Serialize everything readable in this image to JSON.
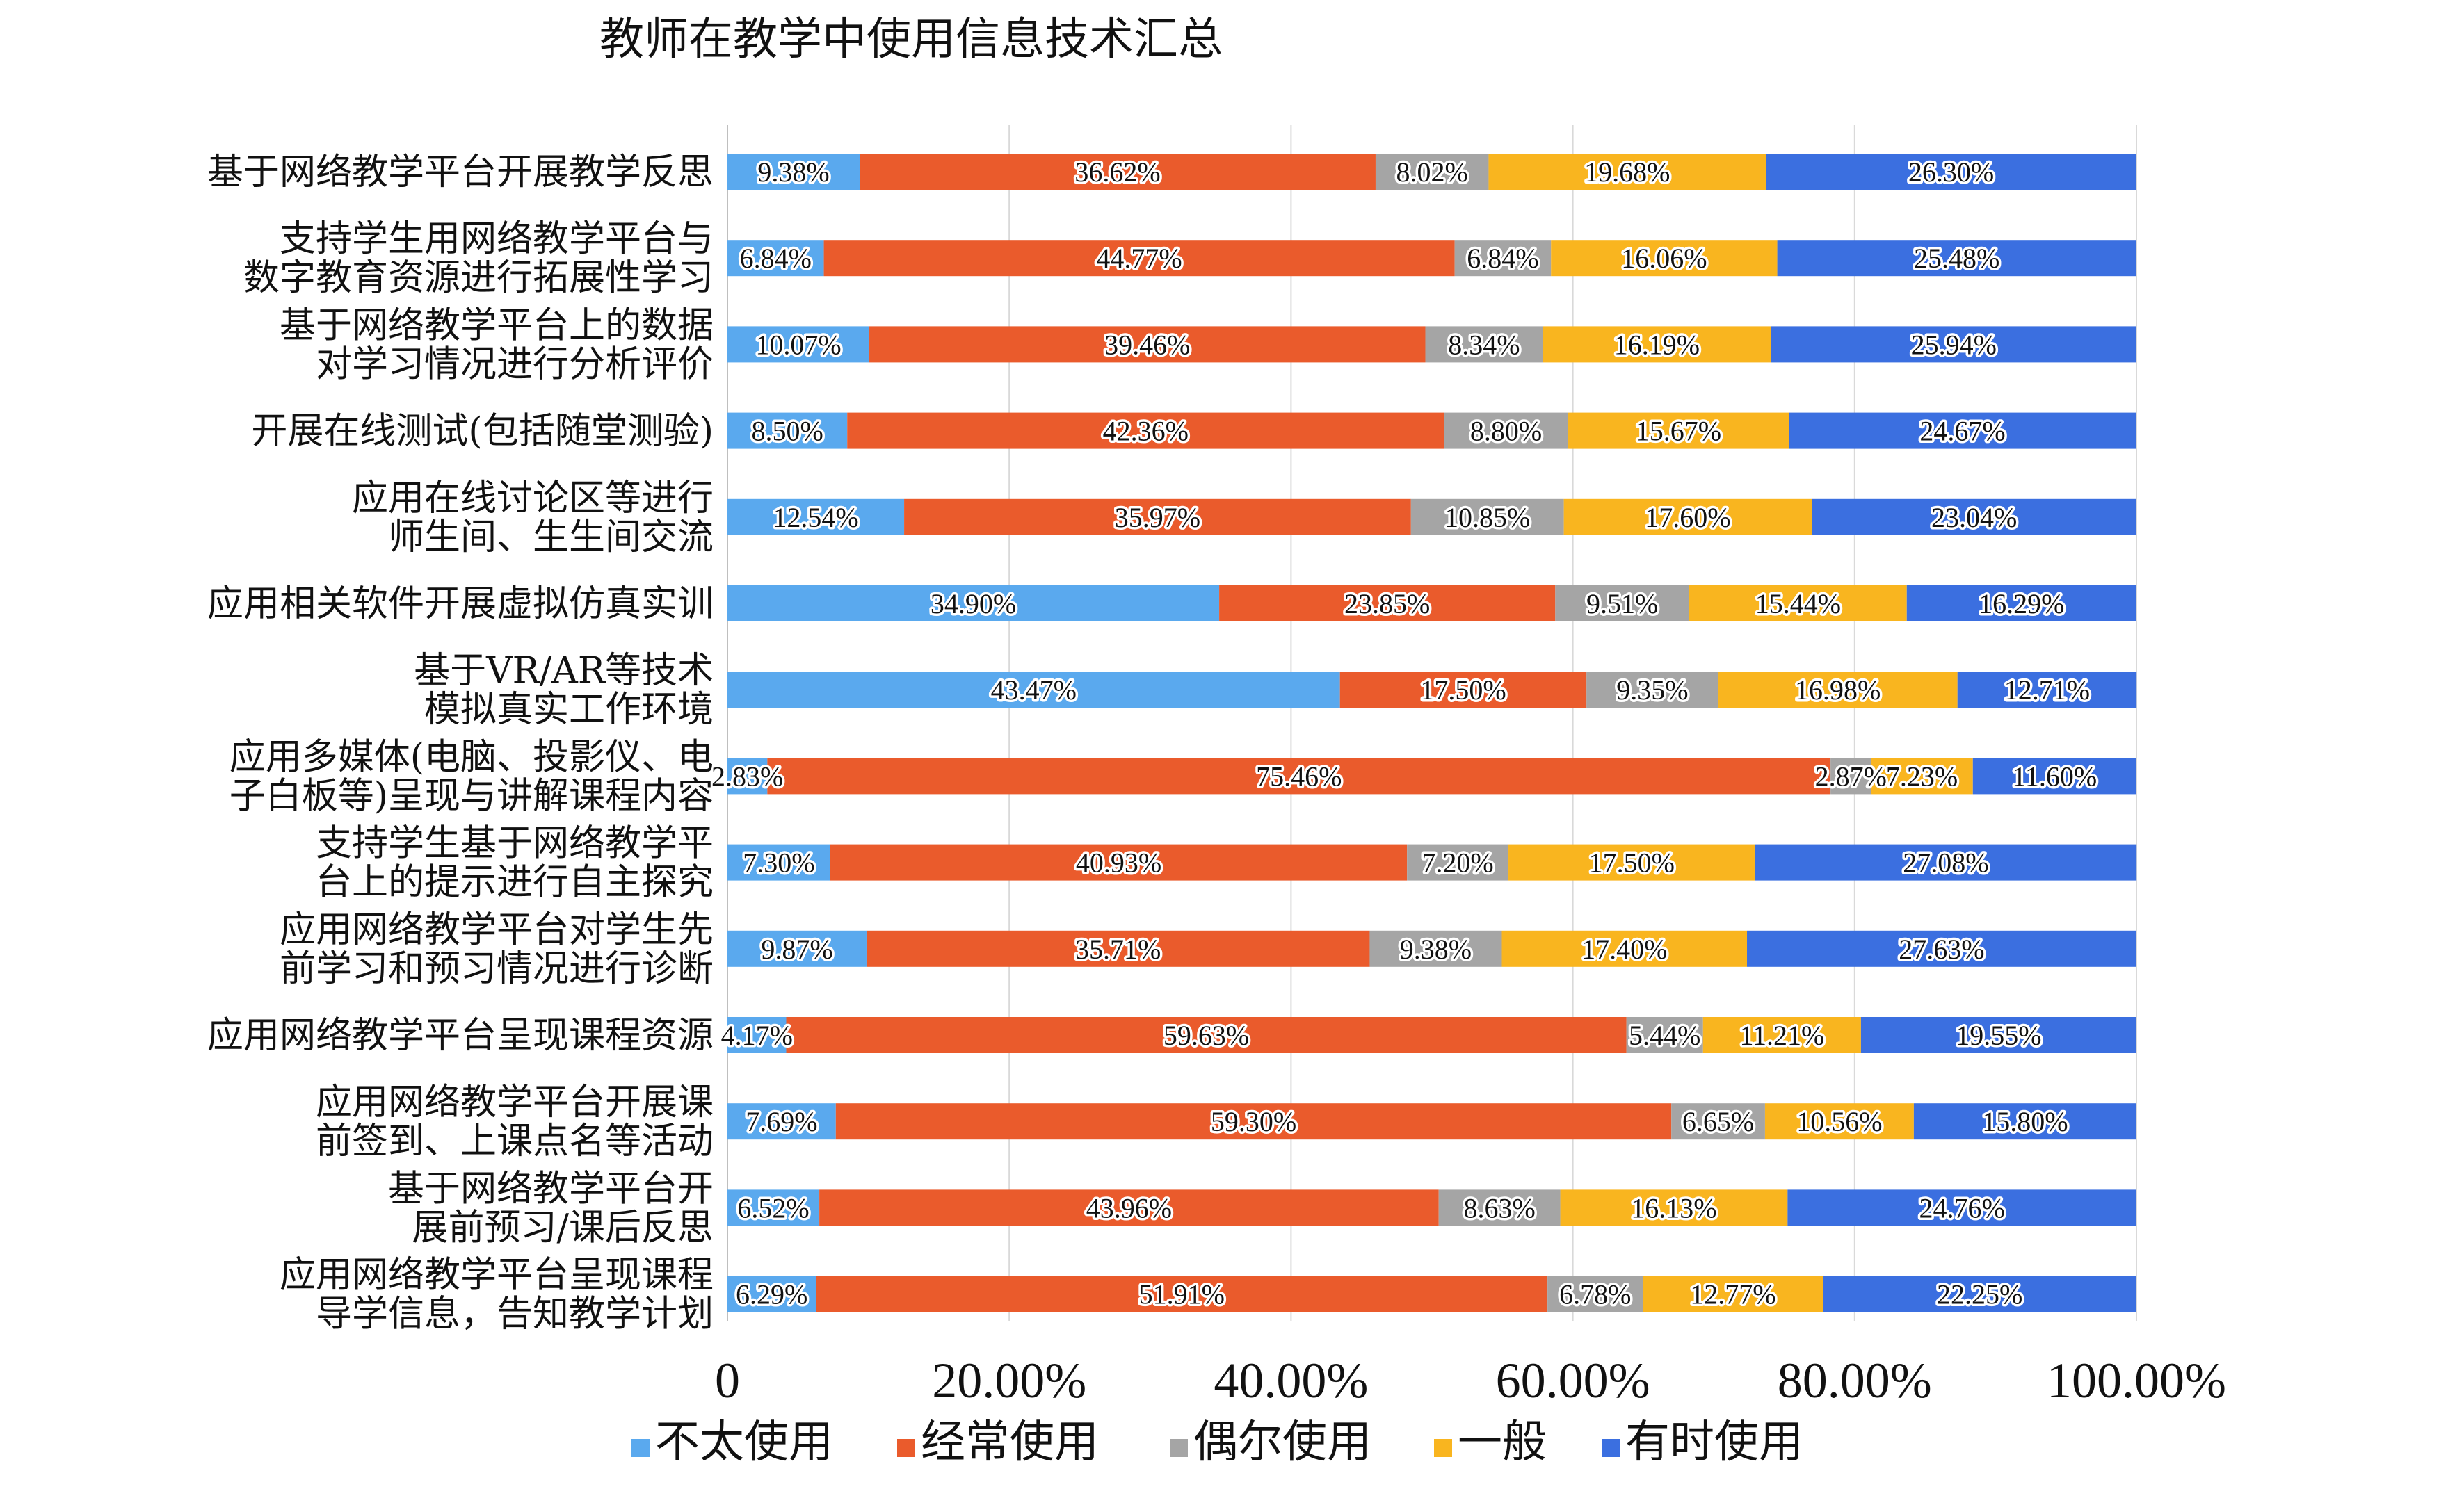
{
  "chart_data": {
    "type": "bar",
    "orientation": "horizontal",
    "stacked": true,
    "title": "教师在教学中使用信息技术汇总",
    "xlim": [
      0,
      100
    ],
    "x_ticks": [
      "0",
      "20.00%",
      "40.00%",
      "60.00%",
      "80.00%",
      "100.00%"
    ],
    "grid": true,
    "legend_position": "bottom",
    "categories": [
      [
        "基于网络教学平台开展教学反思"
      ],
      [
        "支持学生用网络教学平台与",
        "数字教育资源进行拓展性学习"
      ],
      [
        "基于网络教学平台上的数据",
        "对学习情况进行分析评价"
      ],
      [
        "开展在线测试(包括随堂测验)"
      ],
      [
        "应用在线讨论区等进行",
        "师生间、生生间交流"
      ],
      [
        "应用相关软件开展虚拟仿真实训"
      ],
      [
        "基于VR/AR等技术",
        "模拟真实工作环境"
      ],
      [
        "应用多媒体(电脑、投影仪、电",
        "子白板等)呈现与讲解课程内容"
      ],
      [
        "支持学生基于网络教学平",
        "台上的提示进行自主探究"
      ],
      [
        "应用网络教学平台对学生先",
        "前学习和预习情况进行诊断"
      ],
      [
        "应用网络教学平台呈现课程资源"
      ],
      [
        "应用网络教学平台开展课",
        "前签到、上课点名等活动"
      ],
      [
        "基于网络教学平台开",
        "展前预习/课后反思"
      ],
      [
        "应用网络教学平台呈现课程",
        "导学信息，告知教学计划"
      ]
    ],
    "series": [
      {
        "name": "不太使用",
        "color": "#5aa9ee",
        "values": [
          9.38,
          6.84,
          10.07,
          8.5,
          12.54,
          34.9,
          43.47,
          2.83,
          7.3,
          9.87,
          4.17,
          7.69,
          6.52,
          6.29
        ],
        "labels": [
          "9.38%",
          "6.84%",
          "10.07%",
          "8.50%",
          "12.54%",
          "34.90%",
          "43.47%",
          "2.83%",
          "7.30%",
          "9.87%",
          "4.17%",
          "7.69%",
          "6.52%",
          "6.29%"
        ]
      },
      {
        "name": "经常使用",
        "color": "#ea5b2c",
        "values": [
          36.62,
          44.77,
          39.46,
          42.36,
          35.97,
          23.85,
          17.5,
          75.46,
          40.93,
          35.71,
          59.63,
          59.3,
          43.96,
          51.91
        ],
        "labels": [
          "36.62%",
          "44.77%",
          "39.46%",
          "42.36%",
          "35.97%",
          "23.85%",
          "17.50%",
          "75.46%",
          "40.93%",
          "35.71%",
          "59.63%",
          "59.30%",
          "43.96%",
          "51.91%"
        ]
      },
      {
        "name": "偶尔使用",
        "color": "#a5a5a5",
        "values": [
          8.02,
          6.84,
          8.34,
          8.8,
          10.85,
          9.51,
          9.35,
          2.87,
          7.2,
          9.38,
          5.44,
          6.65,
          8.63,
          6.78
        ],
        "labels": [
          "8.02%",
          "6.84%",
          "8.34%",
          "8.80%",
          "10.85%",
          "9.51%",
          "9.35%",
          "2.87%",
          "7.20%",
          "9.38%",
          "5.44%",
          "6.65%",
          "8.63%",
          "6.78%"
        ]
      },
      {
        "name": "一般",
        "color": "#f9b51f",
        "values": [
          19.68,
          16.06,
          16.19,
          15.67,
          17.6,
          15.44,
          16.98,
          7.23,
          17.5,
          17.4,
          11.21,
          10.56,
          16.13,
          12.77
        ],
        "labels": [
          "19.68%",
          "16.06%",
          "16.19%",
          "15.67%",
          "17.60%",
          "15.44%",
          "16.98%",
          "7.23%",
          "17.50%",
          "17.40%",
          "11.21%",
          "10.56%",
          "16.13%",
          "12.77%"
        ]
      },
      {
        "name": "有时使用",
        "color": "#3b6fe0",
        "values": [
          26.3,
          25.48,
          25.94,
          24.67,
          23.04,
          16.29,
          12.71,
          11.6,
          27.08,
          27.63,
          19.55,
          15.8,
          24.76,
          22.25
        ],
        "labels": [
          "26.30%",
          "25.48%",
          "25.94%",
          "24.67%",
          "23.04%",
          "16.29%",
          "12.71%",
          "11.60%",
          "27.08%",
          "27.63%",
          "19.55%",
          "15.80%",
          "24.76%",
          "22.25%"
        ]
      }
    ]
  }
}
